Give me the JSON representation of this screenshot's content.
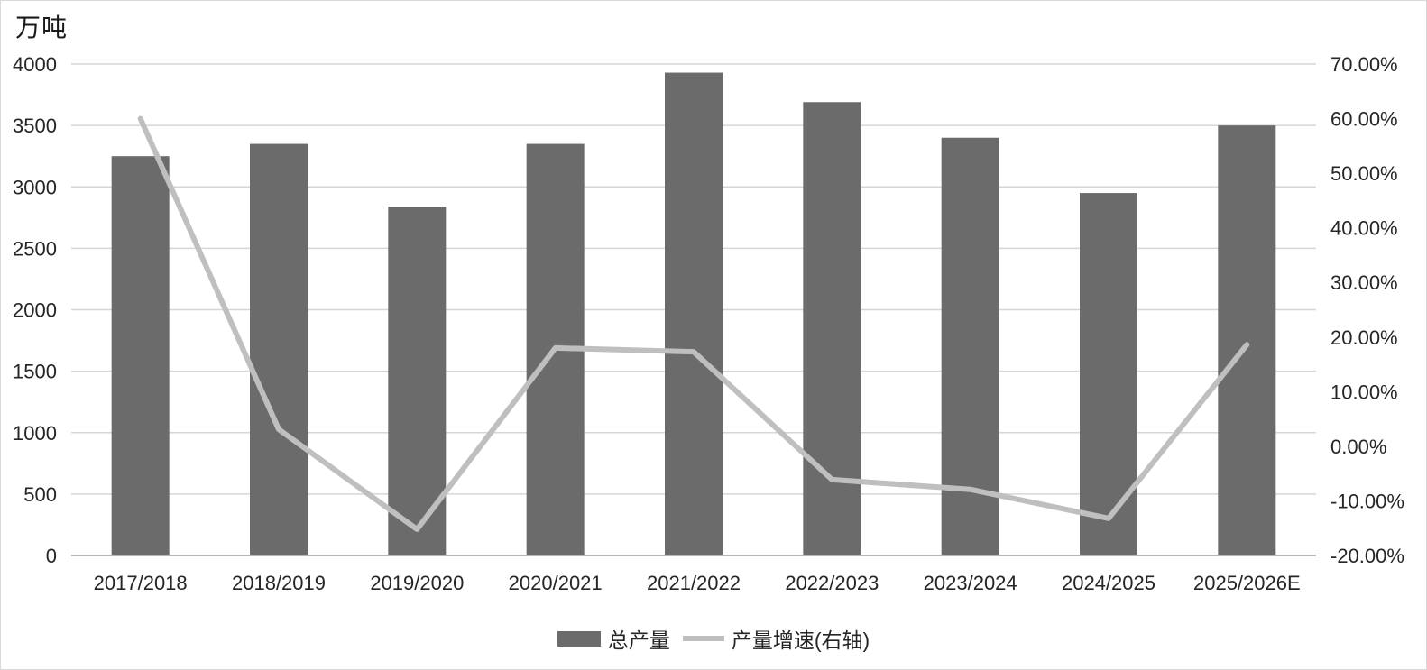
{
  "unit_label": "万吨",
  "legend": [
    {
      "label": "总产量",
      "type": "bar",
      "color": "#6b6b6b"
    },
    {
      "label": "产量增速(右轴)",
      "type": "line",
      "color": "#bfbfbf"
    }
  ],
  "chart_data": {
    "type": "bar",
    "title": "",
    "xlabel": "",
    "ylabel_left": "万吨",
    "ylabel_right": "",
    "grid": true,
    "legend_position": "bottom",
    "categories": [
      "2017/2018",
      "2018/2019",
      "2019/2020",
      "2020/2021",
      "2021/2022",
      "2022/2023",
      "2023/2024",
      "2024/2025",
      "2025/2026E"
    ],
    "series": [
      {
        "name": "总产量",
        "type": "bar",
        "axis": "left",
        "color": "#6b6b6b",
        "values": [
          3250,
          3350,
          2840,
          3350,
          3930,
          3690,
          3400,
          2950,
          3500
        ]
      },
      {
        "name": "产量增速(右轴)",
        "type": "line",
        "axis": "right",
        "color": "#bfbfbf",
        "values": [
          60.0,
          3.1,
          -15.2,
          18.0,
          17.3,
          -6.1,
          -7.9,
          -13.2,
          18.6
        ]
      }
    ],
    "left_axis": {
      "min": 0,
      "max": 4000,
      "step": 500,
      "labels": [
        "0",
        "500",
        "1000",
        "1500",
        "2000",
        "2500",
        "3000",
        "3500",
        "4000"
      ]
    },
    "right_axis": {
      "min": -20,
      "max": 70,
      "step": 10,
      "labels": [
        "-20.00%",
        "-10.00%",
        "0.00%",
        "10.00%",
        "20.00%",
        "30.00%",
        "40.00%",
        "50.00%",
        "60.00%",
        "70.00%"
      ]
    },
    "colors": {
      "gridline": "#d6d6d6",
      "axis_line": "#9e9e9e",
      "text": "#262626"
    }
  }
}
